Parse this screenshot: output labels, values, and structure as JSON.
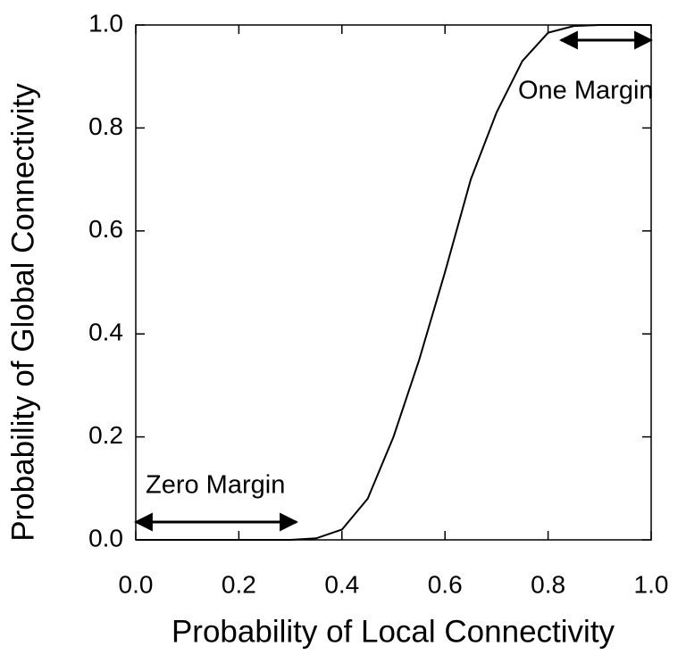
{
  "chart_data": {
    "type": "line",
    "x_label": "Probability of Local Connectivity",
    "y_label": "Probability of Global Connectivity",
    "annotations": [
      "Zero Margin",
      "One Margin"
    ],
    "x": [
      0,
      0.05,
      0.1,
      0.15,
      0.2,
      0.25,
      0.3,
      0.35,
      0.4,
      0.45,
      0.5,
      0.55,
      0.6,
      0.65,
      0.7,
      0.75,
      0.8,
      0.85,
      0.9,
      0.95,
      1.0
    ],
    "series": [
      {
        "color": "#000000",
        "values": [
          0,
          0,
          0,
          0,
          0,
          0,
          0,
          0.003,
          0.02,
          0.08,
          0.2,
          0.35,
          0.52,
          0.7,
          0.83,
          0.93,
          0.985,
          0.998,
          1,
          1,
          1
        ]
      }
    ],
    "xlim": [
      0,
      1
    ],
    "ylim": [
      0,
      1
    ],
    "xticks": [
      {
        "value": 0,
        "label": "0.0"
      },
      {
        "value": 0.2,
        "label": "0.2"
      },
      {
        "value": 0.4,
        "label": "0.4"
      },
      {
        "value": 0.6,
        "label": "0.6"
      },
      {
        "value": 0.8,
        "label": "0.8"
      },
      {
        "value": 1,
        "label": "1.0"
      }
    ],
    "yticks": [
      {
        "value": 0,
        "label": "0.0"
      },
      {
        "value": 0.2,
        "label": "0.2"
      },
      {
        "value": 0.4,
        "label": "0.4"
      },
      {
        "value": 0.6,
        "label": "0.6"
      },
      {
        "value": 0.8,
        "label": "0.8"
      },
      {
        "value": 1,
        "label": "1.0"
      }
    ],
    "grid": false
  }
}
